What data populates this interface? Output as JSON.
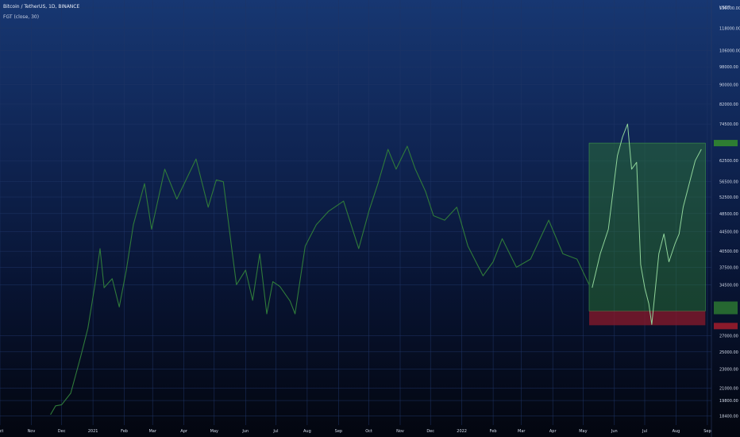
{
  "header": {
    "symbol_line": "Bitcoin / TetherUS, 1D, BINANCE",
    "indicator_line": "FGT (close, 30)"
  },
  "price_axis": {
    "currency": "USDT",
    "ticks": [
      130000,
      118000,
      106000,
      98000,
      90000,
      82000,
      74500,
      62500,
      56500,
      52500,
      48500,
      44500,
      40500,
      37500,
      34500,
      27000,
      25000,
      23000,
      21000,
      19800,
      18400
    ]
  },
  "time_axis": {
    "labels": [
      "Oct",
      "Nov",
      "Dec",
      "2021",
      "Feb",
      "Mar",
      "Apr",
      "May",
      "Jun",
      "Jul",
      "Aug",
      "Sep",
      "Oct",
      "Nov",
      "Dec",
      "2022",
      "Feb",
      "Mar",
      "Apr",
      "May",
      "Jun",
      "Jul",
      "Aug",
      "Sep"
    ]
  },
  "colors": {
    "price_line": "#2f7a3a",
    "projection_line": "#8fd49a",
    "profit_zone": "#2e7d32",
    "loss_zone": "#8b1a2b",
    "grid": "#1f3566",
    "axis_text": "#d5dceb"
  },
  "chart_data": {
    "type": "line",
    "title": "Bitcoin / TetherUS, 1D, BINANCE",
    "indicator": "FGT (close, 30)",
    "log_scale": true,
    "grid": true,
    "y_axis_position": "right",
    "x_range": [
      "2020-10-01",
      "2022-09-05"
    ],
    "y_range": [
      17600,
      135000
    ],
    "series": [
      {
        "x": [
          "2020-11-20",
          "2020-11-25",
          "2020-12-01",
          "2020-12-10",
          "2020-12-20",
          "2020-12-27",
          "2021-01-03",
          "2021-01-08",
          "2021-01-12",
          "2021-01-20",
          "2021-01-27",
          "2021-02-03",
          "2021-02-10",
          "2021-02-21",
          "2021-02-28",
          "2021-03-13",
          "2021-03-25",
          "2021-04-13",
          "2021-04-25",
          "2021-05-03",
          "2021-05-10",
          "2021-05-19",
          "2021-05-23",
          "2021-06-01",
          "2021-06-08",
          "2021-06-15",
          "2021-06-22",
          "2021-06-28",
          "2021-07-05",
          "2021-07-15",
          "2021-07-20",
          "2021-07-30",
          "2021-08-10",
          "2021-08-22",
          "2021-09-06",
          "2021-09-21",
          "2021-10-01",
          "2021-10-10",
          "2021-10-20",
          "2021-10-28",
          "2021-11-08",
          "2021-11-16",
          "2021-11-26",
          "2021-12-04",
          "2021-12-15",
          "2021-12-27",
          "2022-01-07",
          "2022-01-22",
          "2022-02-01",
          "2022-02-10",
          "2022-02-24",
          "2022-03-10",
          "2022-03-28",
          "2022-04-11",
          "2022-04-25",
          "2022-05-07"
        ],
        "values": [
          18500,
          19300,
          19400,
          20500,
          24500,
          28000,
          34500,
          41000,
          34000,
          35500,
          31000,
          37000,
          46000,
          56000,
          45000,
          60000,
          52000,
          63000,
          50000,
          57000,
          56500,
          40000,
          34500,
          37000,
          32000,
          40000,
          30000,
          35000,
          34200,
          31900,
          30000,
          41500,
          46000,
          49000,
          51500,
          41000,
          49000,
          56000,
          66000,
          60000,
          67000,
          60000,
          54000,
          48000,
          47000,
          50000,
          41500,
          36000,
          38500,
          43000,
          37500,
          39000,
          47000,
          40000,
          39000,
          34500
        ]
      },
      {
        "x": [
          "2022-05-10",
          "2022-05-18",
          "2022-05-26",
          "2022-06-04",
          "2022-06-09",
          "2022-06-14",
          "2022-06-18",
          "2022-06-23",
          "2022-06-27",
          "2022-07-01",
          "2022-07-05",
          "2022-07-08",
          "2022-07-15",
          "2022-07-20",
          "2022-07-25",
          "2022-07-31",
          "2022-08-04",
          "2022-08-08",
          "2022-08-15",
          "2022-08-20",
          "2022-08-26"
        ],
        "values": [
          34000,
          40000,
          45000,
          64000,
          70000,
          74500,
          60000,
          62000,
          38000,
          34000,
          31500,
          28500,
          40000,
          44000,
          38500,
          42000,
          44000,
          50000,
          57000,
          62500,
          66000
        ]
      }
    ],
    "annotations": {
      "profit_zone": {
        "x_start": "2022-05-07",
        "x_end": "2022-08-30",
        "y_low": 30400,
        "y_high": 68000
      },
      "loss_zone": {
        "x_start": "2022-05-07",
        "x_end": "2022-08-30",
        "y_low": 28400,
        "y_high": 30400
      }
    }
  }
}
